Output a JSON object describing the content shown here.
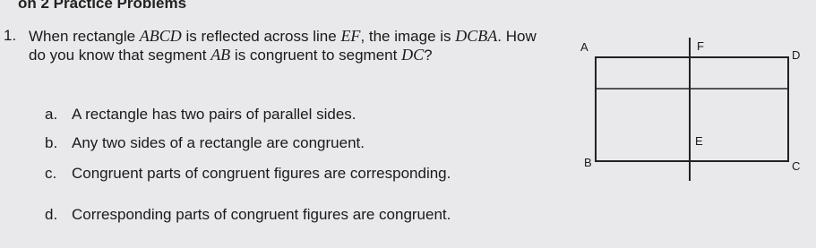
{
  "header": {
    "title": "on 2 Practice Problems"
  },
  "question": {
    "number": "1.",
    "parts": [
      "When rectangle ",
      "ABCD",
      " is reflected across line ",
      "EF",
      ", the image is ",
      "DCBA",
      ". How do you know that segment ",
      "AB",
      " is congruent to segment ",
      "DC",
      "?"
    ],
    "choices": [
      {
        "letter": "a.",
        "text": "A rectangle has two pairs of parallel sides."
      },
      {
        "letter": "b.",
        "text": "Any two sides of a rectangle are congruent."
      },
      {
        "letter": "c.",
        "text": "Congruent parts of congruent figures are corresponding."
      },
      {
        "letter": "d.",
        "text": "Corresponding parts of congruent figures are congruent."
      }
    ]
  },
  "diagram": {
    "labels": [
      "A",
      "F",
      "D",
      "E",
      "B",
      "C"
    ]
  }
}
